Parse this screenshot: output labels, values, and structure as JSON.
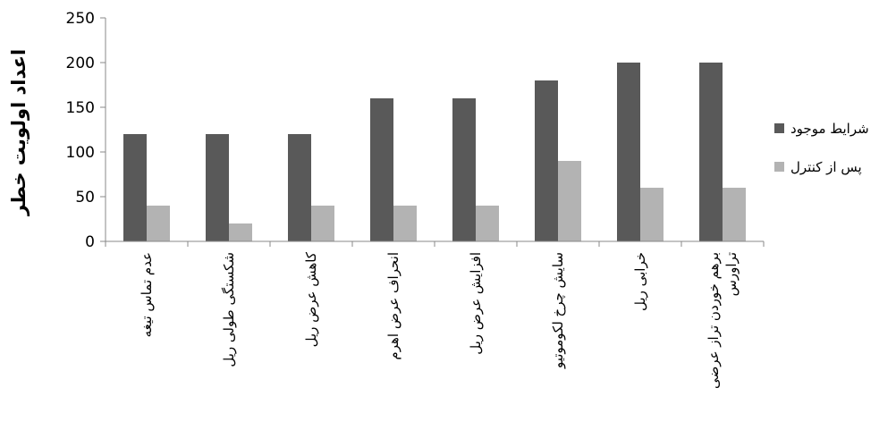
{
  "chart_data": {
    "type": "bar",
    "title": "",
    "xlabel": "",
    "ylabel": "اعداد اولویت خطر",
    "ylim": [
      0,
      250
    ],
    "yticks": [
      0,
      50,
      100,
      150,
      200,
      250
    ],
    "grid": false,
    "legend_position": "right",
    "categories": [
      [
        "عدم تماس تیغه"
      ],
      [
        "شکستگی طولی ریل"
      ],
      [
        "کاهش عرض ریل"
      ],
      [
        "انحراف عرض اهرم"
      ],
      [
        "افزایش عرض ریل"
      ],
      [
        "سایش چرخ لکوموتیو"
      ],
      [
        "خرابی ریل"
      ],
      [
        "برهم خوردن تراز عرضی",
        "تراورس"
      ]
    ],
    "series": [
      {
        "name": "شرایط موجود",
        "color": "#595959",
        "values": [
          120,
          120,
          120,
          160,
          160,
          180,
          200,
          200
        ]
      },
      {
        "name": "پس از کنترل",
        "color": "#b3b3b3",
        "values": [
          40,
          20,
          40,
          40,
          40,
          90,
          60,
          60
        ]
      }
    ]
  }
}
